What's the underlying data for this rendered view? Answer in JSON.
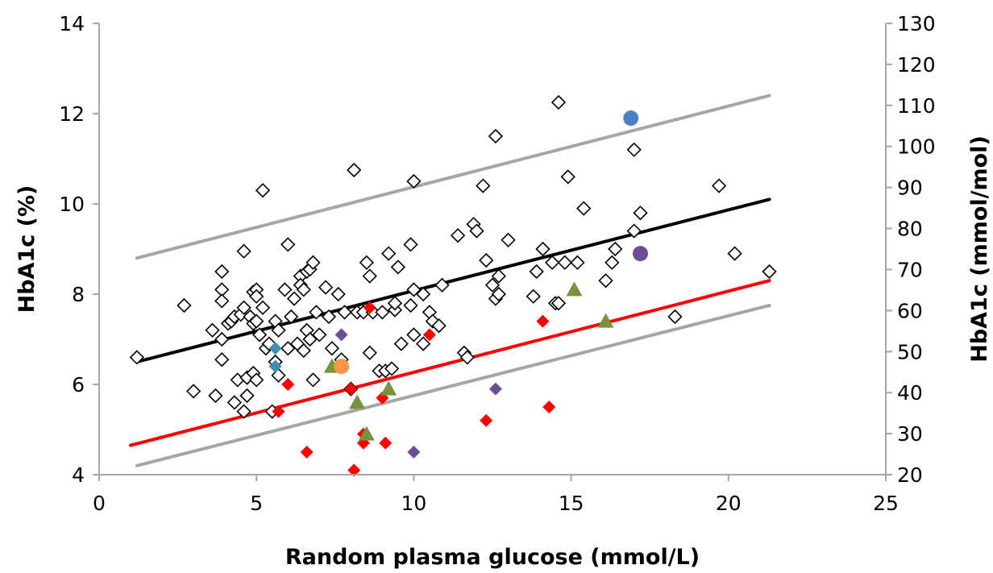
{
  "chart_data": {
    "type": "scatter",
    "xlabel": "Random plasma glucose (mmol/L)",
    "ylabel": "HbA1c (%)",
    "y2label": "HbA1c (mmol/mol)",
    "xlim": [
      0,
      25
    ],
    "ylim": [
      4,
      14
    ],
    "y2lim": [
      20,
      130
    ],
    "xticks": [
      "0",
      "5",
      "10",
      "15",
      "20",
      "25"
    ],
    "yticks": [
      "4",
      "6",
      "8",
      "10",
      "12",
      "14"
    ],
    "y2ticks": [
      "20",
      "30",
      "40",
      "50",
      "60",
      "70",
      "80",
      "90",
      "100",
      "110",
      "120",
      "130"
    ],
    "grid": false,
    "colors": {
      "open_diamond": "#000000",
      "red": "#ff0000",
      "purple": "#6b4f96",
      "teal": "#3f8fac",
      "green": "#77933c",
      "orange": "#f79646",
      "blue": "#4a7fc1",
      "grey_line": "#a6a6a6",
      "black_line": "#000000",
      "red_line": "#ff0000"
    },
    "lines": [
      {
        "color": "grey_line",
        "x": [
          1.2,
          21.3
        ],
        "y": [
          8.8,
          12.4
        ]
      },
      {
        "color": "black_line",
        "x": [
          1.2,
          21.3
        ],
        "y": [
          6.5,
          10.1
        ]
      },
      {
        "color": "red_line",
        "x": [
          1.0,
          21.3
        ],
        "y": [
          4.65,
          8.3
        ]
      },
      {
        "color": "grey_line",
        "x": [
          1.2,
          21.3
        ],
        "y": [
          4.2,
          7.75
        ]
      }
    ],
    "series": [
      {
        "marker": "open-diamond",
        "color": "open_diamond",
        "points": [
          [
            1.2,
            6.6
          ],
          [
            2.7,
            7.75
          ],
          [
            3.0,
            5.85
          ],
          [
            3.6,
            7.2
          ],
          [
            3.7,
            5.75
          ],
          [
            3.9,
            8.5
          ],
          [
            3.9,
            8.1
          ],
          [
            3.9,
            7.85
          ],
          [
            3.9,
            7.0
          ],
          [
            3.9,
            6.55
          ],
          [
            4.1,
            7.35
          ],
          [
            4.2,
            7.4
          ],
          [
            4.3,
            7.5
          ],
          [
            4.3,
            5.6
          ],
          [
            4.4,
            6.1
          ],
          [
            4.5,
            7.55
          ],
          [
            4.6,
            8.95
          ],
          [
            4.6,
            7.7
          ],
          [
            4.6,
            5.4
          ],
          [
            4.7,
            6.15
          ],
          [
            4.7,
            5.75
          ],
          [
            4.8,
            7.5
          ],
          [
            4.9,
            8.05
          ],
          [
            4.9,
            7.35
          ],
          [
            4.9,
            6.25
          ],
          [
            5.0,
            8.1
          ],
          [
            5.0,
            7.95
          ],
          [
            5.0,
            7.4
          ],
          [
            5.0,
            6.1
          ],
          [
            5.1,
            7.1
          ],
          [
            5.2,
            10.3
          ],
          [
            5.2,
            7.7
          ],
          [
            5.3,
            6.8
          ],
          [
            5.4,
            6.9
          ],
          [
            5.5,
            5.4
          ],
          [
            5.6,
            7.4
          ],
          [
            5.6,
            6.5
          ],
          [
            5.7,
            6.2
          ],
          [
            5.7,
            7.2
          ],
          [
            5.9,
            8.1
          ],
          [
            6.0,
            9.1
          ],
          [
            6.0,
            6.8
          ],
          [
            6.1,
            7.5
          ],
          [
            6.2,
            7.9
          ],
          [
            6.3,
            6.9
          ],
          [
            6.4,
            8.4
          ],
          [
            6.4,
            8.2
          ],
          [
            6.5,
            8.1
          ],
          [
            6.5,
            6.75
          ],
          [
            6.6,
            7.2
          ],
          [
            6.6,
            8.5
          ],
          [
            6.7,
            8.55
          ],
          [
            6.7,
            7.0
          ],
          [
            6.8,
            8.7
          ],
          [
            6.8,
            6.1
          ],
          [
            6.9,
            7.6
          ],
          [
            7.0,
            7.1
          ],
          [
            7.2,
            8.15
          ],
          [
            7.3,
            7.5
          ],
          [
            7.4,
            6.8
          ],
          [
            7.6,
            8.0
          ],
          [
            7.7,
            6.55
          ],
          [
            7.8,
            7.6
          ],
          [
            8.0,
            5.9
          ],
          [
            8.1,
            10.75
          ],
          [
            8.2,
            7.6
          ],
          [
            8.4,
            7.6
          ],
          [
            8.5,
            8.7
          ],
          [
            8.6,
            8.4
          ],
          [
            8.6,
            6.7
          ],
          [
            8.7,
            7.6
          ],
          [
            8.9,
            6.3
          ],
          [
            9.0,
            7.6
          ],
          [
            9.1,
            6.3
          ],
          [
            9.2,
            8.9
          ],
          [
            9.3,
            6.35
          ],
          [
            9.4,
            7.65
          ],
          [
            9.4,
            7.8
          ],
          [
            9.5,
            8.6
          ],
          [
            9.6,
            6.9
          ],
          [
            9.9,
            9.1
          ],
          [
            9.9,
            7.75
          ],
          [
            10.0,
            10.5
          ],
          [
            10.0,
            8.1
          ],
          [
            10.0,
            7.1
          ],
          [
            10.3,
            8.0
          ],
          [
            10.3,
            6.9
          ],
          [
            10.5,
            7.6
          ],
          [
            10.6,
            7.4
          ],
          [
            10.8,
            7.3
          ],
          [
            10.9,
            8.2
          ],
          [
            11.4,
            9.3
          ],
          [
            11.6,
            6.7
          ],
          [
            11.7,
            6.6
          ],
          [
            11.9,
            9.55
          ],
          [
            12.0,
            9.4
          ],
          [
            12.2,
            10.4
          ],
          [
            12.3,
            8.75
          ],
          [
            12.5,
            8.2
          ],
          [
            12.6,
            11.5
          ],
          [
            12.6,
            7.9
          ],
          [
            12.7,
            8.4
          ],
          [
            12.7,
            8.0
          ],
          [
            13.0,
            9.2
          ],
          [
            13.8,
            7.95
          ],
          [
            13.9,
            8.5
          ],
          [
            14.1,
            9.0
          ],
          [
            14.4,
            8.7
          ],
          [
            14.5,
            7.8
          ],
          [
            14.6,
            12.25
          ],
          [
            14.6,
            7.8
          ],
          [
            14.8,
            8.7
          ],
          [
            14.9,
            10.6
          ],
          [
            15.2,
            8.7
          ],
          [
            15.4,
            9.9
          ],
          [
            16.1,
            8.3
          ],
          [
            16.3,
            8.7
          ],
          [
            16.4,
            9.0
          ],
          [
            17.0,
            11.2
          ],
          [
            17.0,
            9.4
          ],
          [
            17.2,
            9.8
          ],
          [
            18.3,
            7.5
          ],
          [
            19.7,
            10.4
          ],
          [
            20.2,
            8.9
          ],
          [
            21.3,
            8.5
          ]
        ]
      },
      {
        "marker": "filled-diamond",
        "color": "red",
        "points": [
          [
            5.7,
            5.4
          ],
          [
            6.0,
            6.0
          ],
          [
            6.6,
            4.5
          ],
          [
            7.7,
            6.4
          ],
          [
            8.0,
            5.9
          ],
          [
            8.1,
            4.1
          ],
          [
            8.4,
            4.9
          ],
          [
            8.4,
            4.7
          ],
          [
            8.6,
            7.7
          ],
          [
            9.0,
            5.7
          ],
          [
            9.1,
            4.7
          ],
          [
            10.5,
            7.1
          ],
          [
            12.3,
            5.2
          ],
          [
            14.1,
            7.4
          ],
          [
            14.3,
            5.5
          ]
        ]
      },
      {
        "marker": "filled-diamond",
        "color": "purple",
        "points": [
          [
            7.7,
            7.1
          ],
          [
            12.6,
            5.9
          ],
          [
            10.0,
            4.5
          ]
        ]
      },
      {
        "marker": "filled-diamond",
        "color": "teal",
        "points": [
          [
            5.6,
            6.8
          ],
          [
            5.6,
            6.4
          ]
        ]
      },
      {
        "marker": "triangle",
        "color": "green",
        "points": [
          [
            7.4,
            6.4
          ],
          [
            8.2,
            5.6
          ],
          [
            8.5,
            4.9
          ],
          [
            9.2,
            5.9
          ],
          [
            15.1,
            8.1
          ],
          [
            16.1,
            7.4
          ]
        ]
      },
      {
        "marker": "circle",
        "color": "orange",
        "points": [
          [
            7.7,
            6.4
          ]
        ]
      },
      {
        "marker": "circle",
        "color": "blue",
        "points": [
          [
            16.9,
            11.9
          ]
        ]
      },
      {
        "marker": "circle",
        "color": "purple",
        "points": [
          [
            17.2,
            8.9
          ]
        ]
      }
    ]
  }
}
